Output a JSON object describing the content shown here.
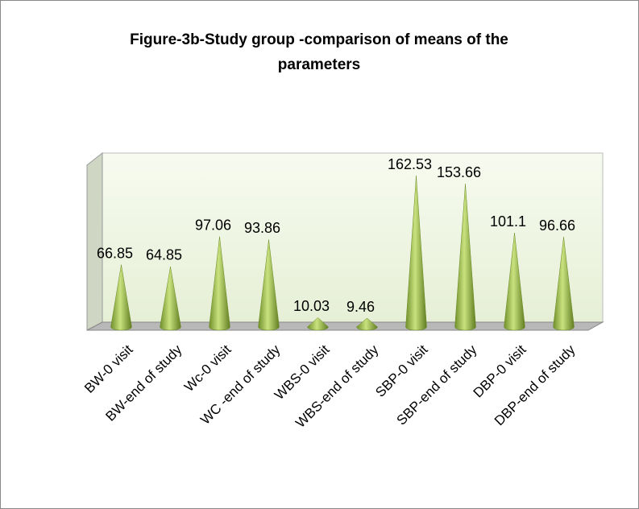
{
  "chart_data": {
    "type": "cone",
    "title": [
      "Figure-3b-Study group -comparison of means of the",
      "parameters"
    ],
    "categories": [
      "BW-0 visit",
      "BW-end of study",
      "Wc-0 visit",
      "WC -end of study",
      "WBS-0 visit",
      "WBS-end of study",
      "SBP-0 visit",
      "SBP-end of study",
      "DBP-0 visit",
      "DBP-end of study"
    ],
    "values": [
      66.85,
      64.85,
      97.06,
      93.86,
      10.03,
      9.46,
      162.53,
      153.66,
      101.1,
      96.66
    ],
    "color": "#9bbb59"
  }
}
